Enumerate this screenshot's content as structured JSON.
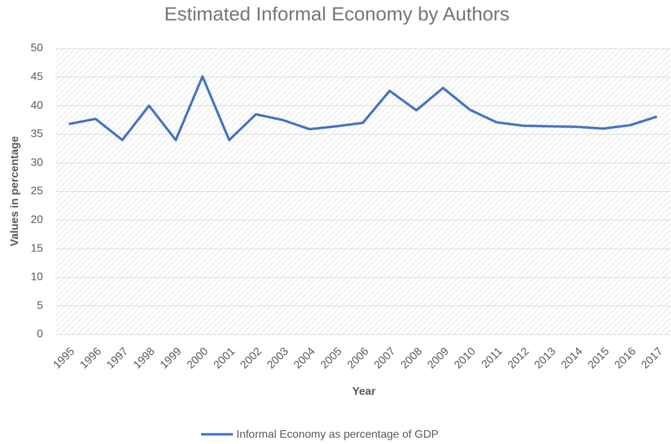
{
  "chart_data": {
    "type": "line",
    "title": "Estimated Informal Economy by Authors",
    "x_label": "Year",
    "y_label": "Values in percentage",
    "categories": [
      "1995",
      "1996",
      "1997",
      "1998",
      "1999",
      "2000",
      "2001",
      "2002",
      "2003",
      "2004",
      "2005",
      "2006",
      "2007",
      "2008",
      "2009",
      "2010",
      "2011",
      "2012",
      "2013",
      "2014",
      "2015",
      "2016",
      "2017"
    ],
    "series": [
      {
        "name": "Informal Economy as percentage of GDP",
        "color": "#4472c4",
        "values": [
          36.8,
          37.7,
          34.0,
          40.0,
          34.0,
          45.1,
          34.0,
          38.5,
          37.5,
          35.9,
          36.4,
          37.0,
          42.6,
          39.2,
          43.1,
          39.3,
          37.1,
          36.5,
          36.4,
          36.3,
          36.0,
          36.6,
          38.1
        ]
      }
    ],
    "ylim": [
      0,
      50
    ],
    "yticks": [
      0,
      5,
      10,
      15,
      20,
      25,
      30,
      35,
      40,
      45,
      50
    ],
    "grid": true,
    "legend": "bottom"
  }
}
